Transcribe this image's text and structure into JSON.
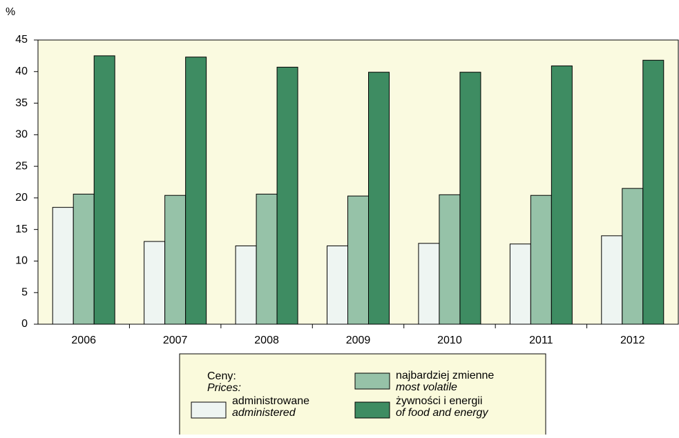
{
  "chart_data": {
    "type": "bar",
    "y_label": "%",
    "categories": [
      "2006",
      "2007",
      "2008",
      "2009",
      "2010",
      "2011",
      "2012"
    ],
    "series": [
      {
        "name": "administrowane",
        "subname": "administered",
        "color": "#eef5f2",
        "values": [
          18.5,
          13.1,
          12.4,
          12.4,
          12.8,
          12.7,
          14.0
        ]
      },
      {
        "name": "najbardziej zmienne",
        "subname": "most volatile",
        "color": "#96c2a8",
        "values": [
          20.6,
          20.4,
          20.6,
          20.3,
          20.5,
          20.4,
          21.5
        ]
      },
      {
        "name": "żywności i energii",
        "subname": "of food and energy",
        "color": "#3e8c62",
        "values": [
          42.5,
          42.3,
          40.7,
          39.9,
          39.9,
          40.9,
          41.8
        ]
      }
    ],
    "legend_title": [
      "Ceny:",
      "Prices:"
    ],
    "ylim": [
      0,
      45
    ],
    "yticks": [
      0,
      5,
      10,
      15,
      20,
      25,
      30,
      35,
      40,
      45
    ]
  }
}
